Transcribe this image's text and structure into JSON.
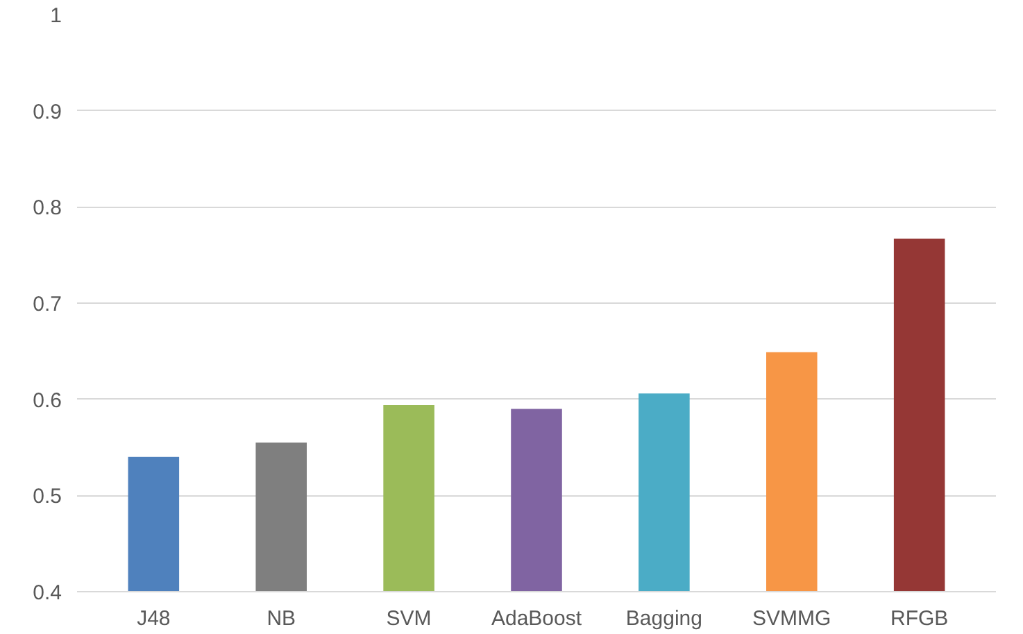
{
  "chart_data": {
    "type": "bar",
    "categories": [
      "J48",
      "NB",
      "SVM",
      "AdaBoost",
      "Bagging",
      "SVMMG",
      "RFGB"
    ],
    "values": [
      0.54,
      0.555,
      0.594,
      0.59,
      0.606,
      0.649,
      0.767
    ],
    "colors": [
      "#4f81bd",
      "#7f7f7f",
      "#9bbb59",
      "#8064a2",
      "#4bacc6",
      "#f79646",
      "#953735"
    ],
    "ylim": [
      0.4,
      1
    ],
    "yticks": [
      0.4,
      0.5,
      0.6,
      0.7,
      0.8,
      0.9,
      1
    ],
    "grid": "y"
  }
}
